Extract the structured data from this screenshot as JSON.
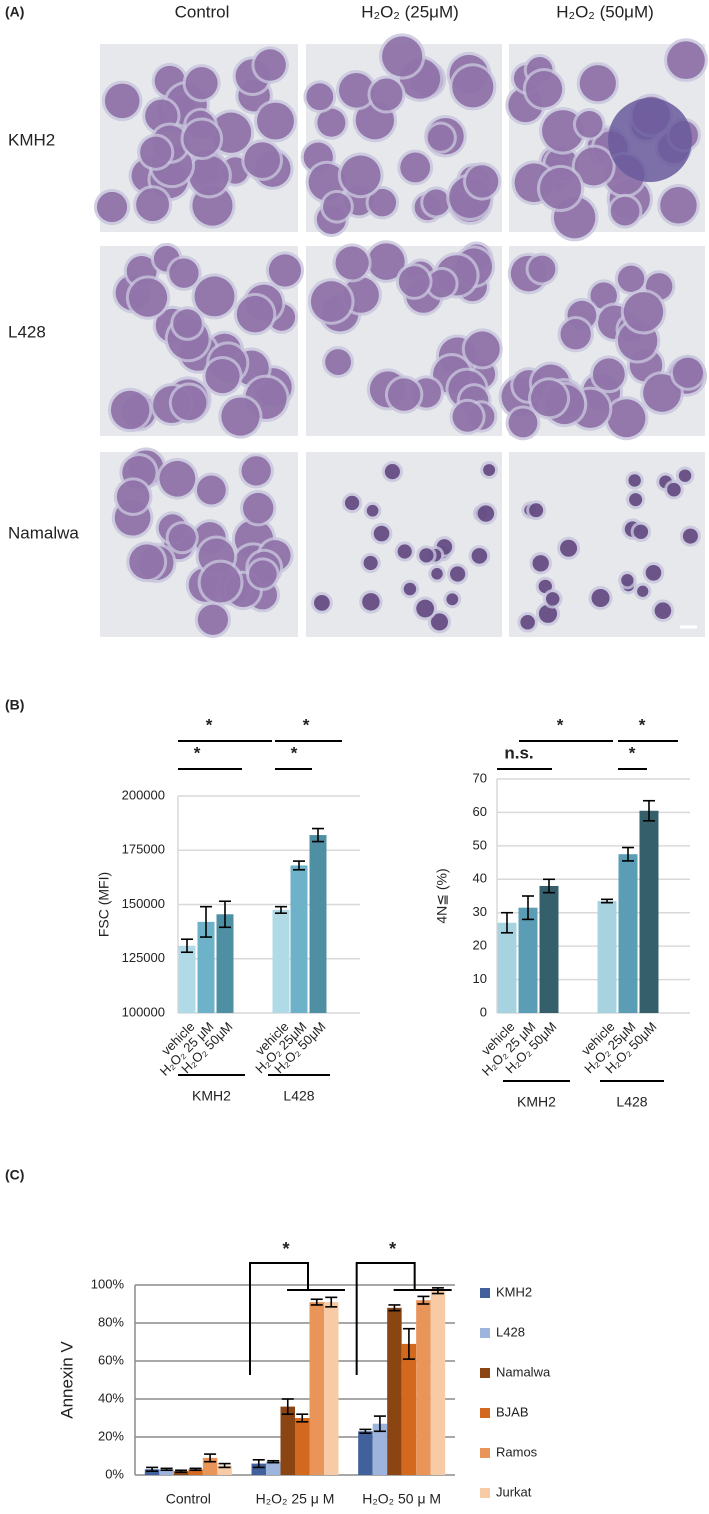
{
  "panel_labels": [
    "(A)",
    "(B)",
    "(C)"
  ],
  "micrographs": {
    "columns": [
      "Control",
      "H₂O₂ (25μM)",
      "H₂O₂ (50μM)"
    ],
    "rows": [
      "KMH2",
      "L428",
      "Namalwa"
    ]
  },
  "chart_data": [
    {
      "type": "bar",
      "ylabel": "FSC (MFI)",
      "categories": [
        "vehicle",
        "H₂O₂ 25 μM",
        "H₂O₂ 50μM",
        "vehicle",
        "H₂O₂ 25μM",
        "H₂O₂ 50μM"
      ],
      "groups": [
        "KMH2",
        "L428"
      ],
      "values": [
        131000,
        142000,
        145500,
        147500,
        168000,
        182000
      ],
      "errors": [
        3000,
        7000,
        6000,
        1500,
        2000,
        3000
      ],
      "colors": [
        "#b0dbe6",
        "#6db2c9",
        "#4f8fa3",
        "#b0dbe6",
        "#6db2c9",
        "#4f8fa3"
      ],
      "ylim": [
        100000,
        200000
      ],
      "yticks": [
        100000,
        125000,
        150000,
        175000,
        200000
      ],
      "grid": true,
      "significance": [
        "*",
        "*",
        "*",
        "*"
      ]
    },
    {
      "type": "bar",
      "ylabel": "4N≦ (%)",
      "categories": [
        "vehicle",
        "H₂O₂ 25 μM",
        "H₂O₂ 50μM",
        "vehicle",
        "H₂O₂ 25μM",
        "H₂O₂ 50μM"
      ],
      "groups": [
        "KMH2",
        "L428"
      ],
      "values": [
        27,
        31.5,
        38,
        33.5,
        47.5,
        60.5
      ],
      "errors": [
        3,
        3.5,
        2,
        0.5,
        2,
        3
      ],
      "colors": [
        "#a6d3df",
        "#5a9db4",
        "#35606b",
        "#a6d3df",
        "#5a9db4",
        "#35606b"
      ],
      "ylim": [
        0,
        70
      ],
      "yticks": [
        0,
        10,
        20,
        30,
        40,
        50,
        60,
        70
      ],
      "grid": true,
      "significance": [
        "*",
        "n.s.",
        "*",
        "*"
      ]
    },
    {
      "type": "grouped-bar",
      "ylabel": "Annexin V",
      "categories": [
        "Control",
        "H₂O₂ 25 μ M",
        "H₂O₂ 50 μ M"
      ],
      "series": [
        {
          "name": "KMH2",
          "color": "#41609c",
          "values": [
            3,
            6,
            23
          ],
          "errors": [
            1,
            2,
            1
          ]
        },
        {
          "name": "L428",
          "color": "#9db4dc",
          "values": [
            3,
            7,
            27
          ],
          "errors": [
            0.5,
            0.5,
            4
          ]
        },
        {
          "name": "Namalwa",
          "color": "#8a4513",
          "values": [
            2,
            36,
            88
          ],
          "errors": [
            0.5,
            4,
            1.5
          ]
        },
        {
          "name": "BJAB",
          "color": "#d2691e",
          "values": [
            3,
            30,
            69
          ],
          "errors": [
            0.5,
            2,
            8
          ]
        },
        {
          "name": "Ramos",
          "color": "#e9955a",
          "values": [
            9,
            91,
            92
          ],
          "errors": [
            2,
            1.5,
            2
          ]
        },
        {
          "name": "Jurkat",
          "color": "#f6cba6",
          "values": [
            5,
            91,
            97
          ],
          "errors": [
            1,
            2.5,
            1.5
          ]
        }
      ],
      "ylim": [
        0,
        100
      ],
      "yticks": [
        {
          "value": 0,
          "label": "0%"
        },
        {
          "value": 20,
          "label": "20%"
        },
        {
          "value": 40,
          "label": "40%"
        },
        {
          "value": 60,
          "label": "60%"
        },
        {
          "value": 80,
          "label": "80%"
        },
        {
          "value": 100,
          "label": "100%"
        }
      ],
      "grid": true,
      "significance": [
        "*",
        "*"
      ]
    }
  ]
}
